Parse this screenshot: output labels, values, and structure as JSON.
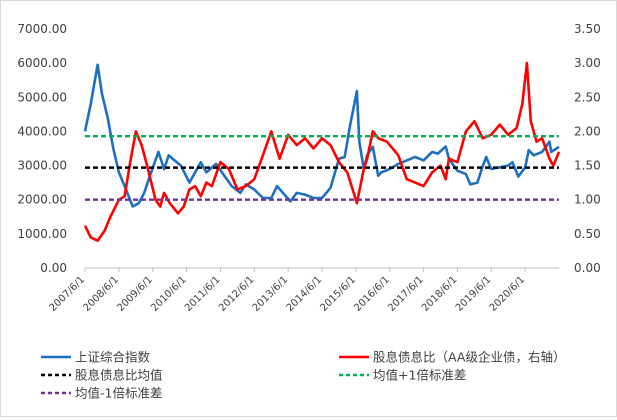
{
  "chart_data": {
    "type": "line",
    "title": "",
    "left_axis": {
      "ylim": [
        0,
        7000
      ],
      "ticks": [
        "0.00",
        "1000.00",
        "2000.00",
        "3000.00",
        "4000.00",
        "5000.00",
        "6000.00",
        "7000.00"
      ]
    },
    "right_axis": {
      "ylim": [
        0,
        3.5
      ],
      "ticks": [
        "0.00",
        "0.50",
        "1.00",
        "1.50",
        "2.00",
        "2.50",
        "3.00",
        "3.50"
      ]
    },
    "x_range": [
      "2007-06-01",
      "2021-06-01"
    ],
    "x_ticks": [
      "2007/6/1",
      "2008/6/1",
      "2009/6/1",
      "2010/6/1",
      "2011/6/1",
      "2012/6/1",
      "2013/6/1",
      "2014/6/1",
      "2015/6/1",
      "2016/6/1",
      "2017/6/1",
      "2018/6/1",
      "2019/6/1",
      "2020/6/1"
    ],
    "legend_placement": "bottom",
    "grid": false,
    "series": [
      {
        "name": "上证综合指数",
        "axis": "left",
        "color": "#1f6fbf",
        "style": "solid",
        "x": [
          "2007-06-01",
          "2007-08-01",
          "2007-10-15",
          "2007-12-01",
          "2008-02-01",
          "2008-04-01",
          "2008-06-01",
          "2008-08-01",
          "2008-10-28",
          "2009-01-01",
          "2009-03-01",
          "2009-05-01",
          "2009-08-01",
          "2009-10-01",
          "2009-11-20",
          "2010-01-01",
          "2010-04-01",
          "2010-07-01",
          "2010-11-01",
          "2011-01-01",
          "2011-04-15",
          "2011-07-01",
          "2011-10-01",
          "2012-01-01",
          "2012-03-01",
          "2012-06-01",
          "2012-09-01",
          "2012-12-01",
          "2013-02-01",
          "2013-06-25",
          "2013-09-01",
          "2013-12-01",
          "2014-03-01",
          "2014-06-01",
          "2014-09-01",
          "2014-12-01",
          "2015-02-01",
          "2015-04-01",
          "2015-06-12",
          "2015-07-08",
          "2015-08-26",
          "2015-10-01",
          "2015-12-01",
          "2016-01-28",
          "2016-03-01",
          "2016-06-01",
          "2016-09-01",
          "2016-12-01",
          "2017-03-01",
          "2017-06-01",
          "2017-09-01",
          "2017-11-01",
          "2018-01-26",
          "2018-03-01",
          "2018-06-01",
          "2018-09-01",
          "2018-10-18",
          "2019-01-03",
          "2019-02-25",
          "2019-04-08",
          "2019-06-01",
          "2019-09-01",
          "2019-12-01",
          "2020-01-15",
          "2020-03-19",
          "2020-06-01",
          "2020-07-09",
          "2020-09-01",
          "2020-12-01",
          "2021-02-18",
          "2021-03-09",
          "2021-06-01"
        ],
        "values": [
          4000,
          4800,
          5950,
          5100,
          4400,
          3500,
          2800,
          2400,
          1800,
          1900,
          2200,
          2700,
          3400,
          2900,
          3300,
          3200,
          3000,
          2500,
          3100,
          2800,
          3050,
          2750,
          2400,
          2200,
          2450,
          2300,
          2050,
          2050,
          2400,
          1950,
          2200,
          2150,
          2050,
          2050,
          2350,
          3200,
          3250,
          4200,
          5180,
          3700,
          2900,
          3300,
          3550,
          2700,
          2800,
          2900,
          3050,
          3150,
          3250,
          3150,
          3400,
          3350,
          3560,
          3200,
          2850,
          2750,
          2450,
          2500,
          2950,
          3250,
          2900,
          2950,
          3000,
          3100,
          2680,
          2950,
          3450,
          3300,
          3400,
          3700,
          3400,
          3550
        ]
      },
      {
        "name": "股息债息比（AA级企业债，右轴）",
        "axis": "right",
        "color": "#ff0000",
        "style": "solid",
        "x": [
          "2007-06-01",
          "2007-08-01",
          "2007-10-15",
          "2008-01-01",
          "2008-03-01",
          "2008-06-01",
          "2008-08-01",
          "2008-10-01",
          "2008-12-01",
          "2009-02-01",
          "2009-04-01",
          "2009-07-01",
          "2009-08-20",
          "2009-10-01",
          "2009-12-01",
          "2010-03-01",
          "2010-05-01",
          "2010-07-01",
          "2010-09-01",
          "2010-11-01",
          "2011-01-01",
          "2011-03-01",
          "2011-06-01",
          "2011-09-01",
          "2011-12-01",
          "2012-03-01",
          "2012-06-01",
          "2012-09-01",
          "2012-12-01",
          "2013-03-01",
          "2013-06-01",
          "2013-09-01",
          "2013-12-01",
          "2014-03-01",
          "2014-06-01",
          "2014-09-01",
          "2014-12-01",
          "2015-03-01",
          "2015-06-12",
          "2015-08-26",
          "2015-10-01",
          "2015-12-01",
          "2016-02-01",
          "2016-05-01",
          "2016-09-01",
          "2016-12-01",
          "2017-03-01",
          "2017-06-01",
          "2017-09-01",
          "2017-12-01",
          "2018-01-26",
          "2018-03-01",
          "2018-06-01",
          "2018-09-01",
          "2018-12-01",
          "2019-03-01",
          "2019-06-01",
          "2019-09-01",
          "2019-12-01",
          "2020-03-01",
          "2020-05-01",
          "2020-06-20",
          "2020-08-01",
          "2020-10-01",
          "2020-12-01",
          "2021-02-18",
          "2021-04-01",
          "2021-06-01"
        ],
        "values": [
          0.62,
          0.45,
          0.4,
          0.55,
          0.75,
          1.0,
          1.05,
          1.55,
          2.0,
          1.8,
          1.5,
          1.0,
          0.9,
          1.1,
          0.95,
          0.8,
          0.9,
          1.15,
          1.2,
          1.05,
          1.25,
          1.2,
          1.55,
          1.45,
          1.15,
          1.2,
          1.3,
          1.65,
          2.0,
          1.6,
          1.95,
          1.8,
          1.9,
          1.75,
          1.9,
          1.8,
          1.55,
          1.4,
          0.95,
          1.45,
          1.6,
          2.0,
          1.9,
          1.85,
          1.65,
          1.3,
          1.25,
          1.2,
          1.4,
          1.5,
          1.3,
          1.6,
          1.55,
          2.0,
          2.15,
          1.9,
          1.95,
          2.1,
          1.95,
          2.05,
          2.4,
          3.0,
          2.15,
          1.85,
          1.9,
          1.6,
          1.5,
          1.7
        ]
      },
      {
        "name": "股息债息比均值",
        "axis": "right",
        "color": "#000000",
        "style": "dashed",
        "values": [
          1.47
        ]
      },
      {
        "name": "均值+1倍标准差",
        "axis": "right",
        "color": "#00b050",
        "style": "dashed",
        "values": [
          1.93
        ]
      },
      {
        "name": "均值-1倍标准差",
        "axis": "right",
        "color": "#7030a0",
        "style": "dashed",
        "values": [
          1.0
        ]
      }
    ]
  }
}
